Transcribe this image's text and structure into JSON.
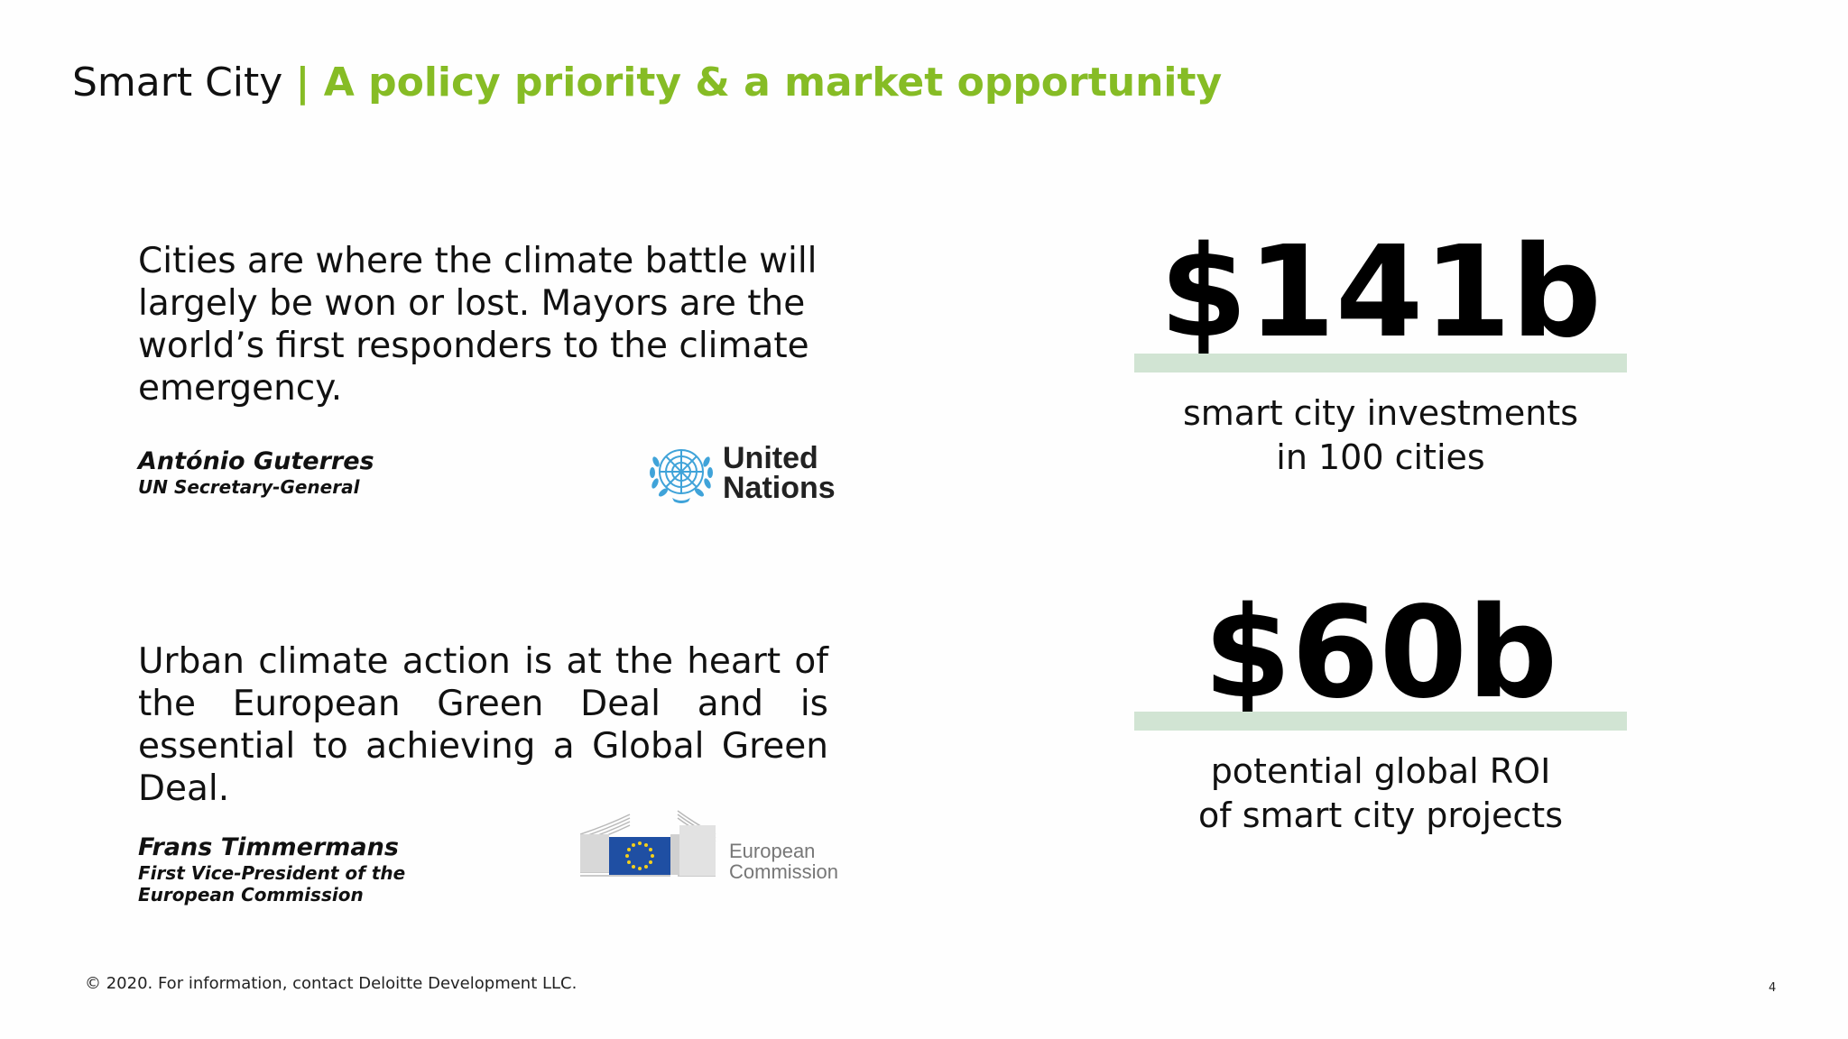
{
  "slide": {
    "title_main": "Smart City",
    "title_accent": "| A policy priority & a market opportunity",
    "accent_color": "#86bc25"
  },
  "quotes": [
    {
      "text": "Cities are where the climate battle will largely be won or lost. Mayors are the world’s first responders to the climate emergency.",
      "author": "António Guterres",
      "role_line1": "UN Secretary-General",
      "role_line2": "",
      "logo": "un-emblem",
      "logo_text_line1": "United",
      "logo_text_line2": "Nations"
    },
    {
      "text": "Urban climate action is at the heart of the European Green Deal and is essential to achieving a Global Green Deal.",
      "author": "Frans Timmermans",
      "role_line1": "First Vice-President of the",
      "role_line2": "European Commission",
      "logo": "european-commission-emblem",
      "logo_text_line1": "European",
      "logo_text_line2": "Commission"
    }
  ],
  "stats": [
    {
      "value": "$141b",
      "desc_line1": "smart city investments",
      "desc_line2": "in 100 cities"
    },
    {
      "value": "$60b",
      "desc_line1": "potential global ROI",
      "desc_line2": "of smart city projects"
    }
  ],
  "stat_bar_color": "#d1e4d3",
  "footer": {
    "copyright": "© 2020. For information, contact Deloitte Development LLC.",
    "page_number": "4"
  }
}
